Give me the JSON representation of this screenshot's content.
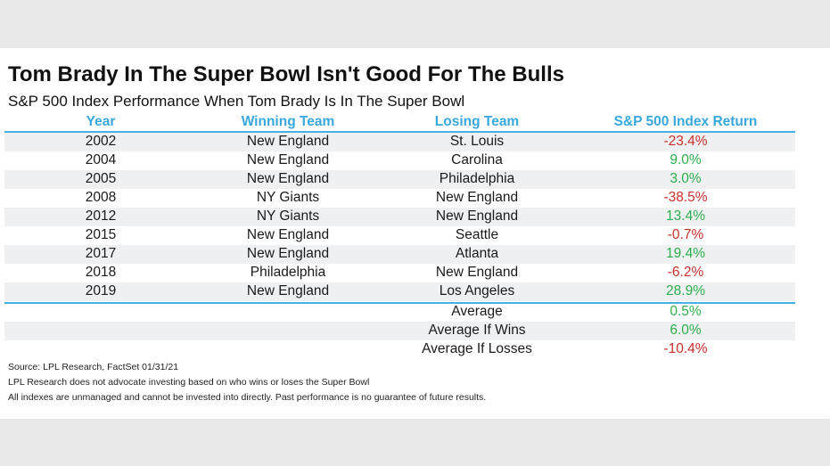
{
  "title": "Tom Brady In The Super Bowl Isn't Good For The Bulls",
  "subtitle": "S&P 500 Index Performance When Tom Brady Is In The Super Bowl",
  "columns": {
    "year": "Year",
    "winning": "Winning Team",
    "losing": "Losing Team",
    "return": "S&P 500 Index Return"
  },
  "rows": [
    {
      "year": "2002",
      "winning": "New England",
      "losing": "St. Louis",
      "return": "-23.4%"
    },
    {
      "year": "2004",
      "winning": "New England",
      "losing": "Carolina",
      "return": "9.0%"
    },
    {
      "year": "2005",
      "winning": "New England",
      "losing": "Philadelphia",
      "return": "3.0%"
    },
    {
      "year": "2008",
      "winning": "NY Giants",
      "losing": "New England",
      "return": "-38.5%"
    },
    {
      "year": "2012",
      "winning": "NY Giants",
      "losing": "New England",
      "return": "13.4%"
    },
    {
      "year": "2015",
      "winning": "New England",
      "losing": "Seattle",
      "return": "-0.7%"
    },
    {
      "year": "2017",
      "winning": "New England",
      "losing": "Atlanta",
      "return": "19.4%"
    },
    {
      "year": "2018",
      "winning": "Philadelphia",
      "losing": "New England",
      "return": "-6.2%"
    },
    {
      "year": "2019",
      "winning": "New England",
      "losing": "Los Angeles",
      "return": "28.9%"
    }
  ],
  "summary": [
    {
      "label": "Average",
      "return": "0.5%"
    },
    {
      "label": "Average If Wins",
      "return": "6.0%"
    },
    {
      "label": "Average If Losses",
      "return": "-10.4%"
    }
  ],
  "notes": [
    "Source: LPL Research, FactSet 01/31/21",
    "LPL Research does not advocate investing based on who wins or loses the Super Bowl",
    "All indexes are unmanaged and cannot be invested into directly. Past performance is no guarantee of future results."
  ],
  "colors": {
    "header": "#38a8dc",
    "rule": "#46b0e1",
    "negative": "#c8302c",
    "positive": "#2dae4b",
    "row_shade": "#eef0f2"
  }
}
